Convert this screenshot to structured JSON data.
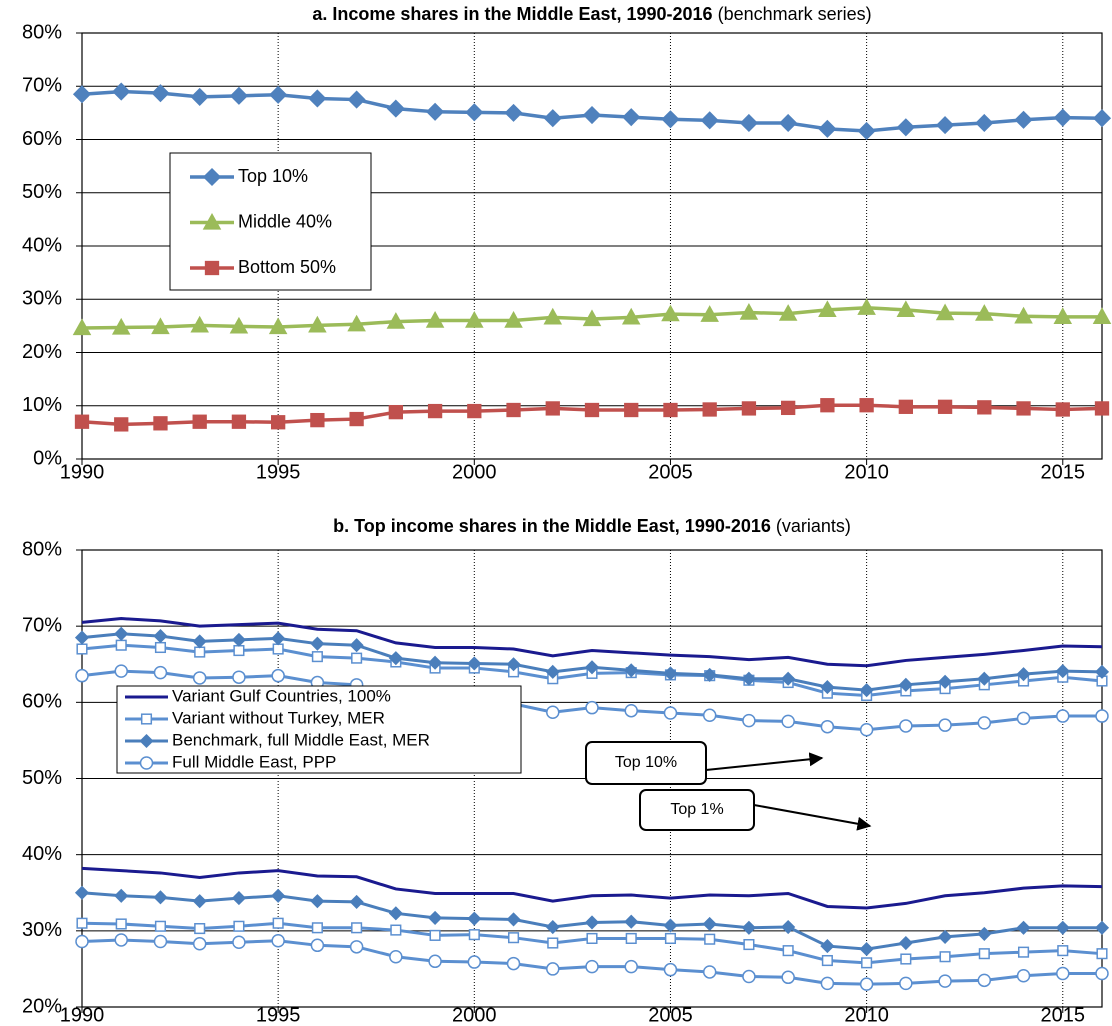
{
  "chart_data": [
    {
      "type": "line",
      "title": "a. Income shares in the Middle East, 1990-2016",
      "title_note": "(benchmark series)",
      "x": [
        1990,
        1991,
        1992,
        1993,
        1994,
        1995,
        1996,
        1997,
        1998,
        1999,
        2000,
        2001,
        2002,
        2003,
        2004,
        2005,
        2006,
        2007,
        2008,
        2009,
        2010,
        2011,
        2012,
        2013,
        2014,
        2015,
        2016
      ],
      "xlim": [
        1990,
        2016
      ],
      "xticks": [
        1990,
        1995,
        2000,
        2005,
        2010,
        2015
      ],
      "ylim": [
        0,
        80
      ],
      "yticks": [
        {
          "value": 0,
          "label": "0%"
        },
        {
          "value": 10,
          "label": "10%"
        },
        {
          "value": 20,
          "label": "20%"
        },
        {
          "value": 30,
          "label": "30%"
        },
        {
          "value": 40,
          "label": "40%"
        },
        {
          "value": 50,
          "label": "50%"
        },
        {
          "value": 60,
          "label": "60%"
        },
        {
          "value": 70,
          "label": "70%"
        },
        {
          "value": 80,
          "label": "80%"
        }
      ],
      "grid": true,
      "series": [
        {
          "name": "Top 10%",
          "color": "#4f81bd",
          "marker": "diamond",
          "values": [
            68.5,
            69,
            68.7,
            68,
            68.2,
            68.4,
            67.7,
            67.5,
            65.8,
            65.2,
            65.1,
            65,
            64,
            64.6,
            64.2,
            63.8,
            63.6,
            63.1,
            63.1,
            62,
            61.6,
            62.3,
            62.7,
            63.1,
            63.7,
            64.1,
            64
          ]
        },
        {
          "name": "Middle 40%",
          "color": "#9bbb59",
          "marker": "triangle",
          "values": [
            24.6,
            24.7,
            24.8,
            25.1,
            24.9,
            24.8,
            25.1,
            25.3,
            25.8,
            26,
            26,
            26,
            26.6,
            26.3,
            26.6,
            27.2,
            27.1,
            27.5,
            27.3,
            28,
            28.4,
            28,
            27.4,
            27.3,
            26.8,
            26.7,
            26.7
          ]
        },
        {
          "name": "Bottom 50%",
          "color": "#c0504d",
          "marker": "square",
          "values": [
            7,
            6.5,
            6.7,
            7,
            7,
            6.9,
            7.3,
            7.5,
            8.8,
            9,
            9,
            9.2,
            9.5,
            9.2,
            9.2,
            9.2,
            9.3,
            9.5,
            9.6,
            10.1,
            10.1,
            9.8,
            9.8,
            9.7,
            9.5,
            9.3,
            9.5
          ]
        }
      ]
    },
    {
      "type": "line",
      "title": "b. Top income shares in the Middle East, 1990-2016",
      "title_note": "(variants)",
      "x": [
        1990,
        1991,
        1992,
        1993,
        1994,
        1995,
        1996,
        1997,
        1998,
        1999,
        2000,
        2001,
        2002,
        2003,
        2004,
        2005,
        2006,
        2007,
        2008,
        2009,
        2010,
        2011,
        2012,
        2013,
        2014,
        2015,
        2016
      ],
      "xlim": [
        1990,
        2016
      ],
      "xticks": [
        1990,
        1995,
        2000,
        2005,
        2010,
        2015
      ],
      "ylim": [
        20,
        80
      ],
      "yticks": [
        {
          "value": 20,
          "label": "20%"
        },
        {
          "value": 30,
          "label": "30%"
        },
        {
          "value": 40,
          "label": "40%"
        },
        {
          "value": 50,
          "label": "50%"
        },
        {
          "value": 60,
          "label": "60%"
        },
        {
          "value": 70,
          "label": "70%"
        },
        {
          "value": 80,
          "label": "80%"
        }
      ],
      "grid": true,
      "annotations": [
        {
          "text": "Top 10%"
        },
        {
          "text": "Top 1%"
        }
      ],
      "series": [
        {
          "name": "Variant Gulf Countries, 100%",
          "color": "#1a1a8f",
          "values": [
            70.5,
            71,
            70.7,
            70,
            70.2,
            70.4,
            69.6,
            69.4,
            67.8,
            67.2,
            67.2,
            67,
            66.1,
            66.8,
            66.5,
            66.2,
            66,
            65.6,
            65.9,
            65,
            64.8,
            65.5,
            65.9,
            66.3,
            66.8,
            67.4,
            67.3
          ],
          "values_top1": [
            38.2,
            37.9,
            37.6,
            37,
            37.6,
            37.9,
            37.2,
            37.1,
            35.5,
            34.9,
            34.9,
            34.9,
            33.9,
            34.6,
            34.7,
            34.3,
            34.7,
            34.6,
            34.9,
            33.2,
            33,
            33.6,
            34.6,
            35,
            35.6,
            35.9,
            35.8
          ]
        },
        {
          "name": "Variant without Turkey, MER",
          "color": "#5b8fd0",
          "marker": "square",
          "marker_fill": "#ffffff",
          "values": [
            67,
            67.5,
            67.2,
            66.6,
            66.8,
            67,
            66,
            65.8,
            65.3,
            64.5,
            64.5,
            64,
            63.1,
            63.8,
            63.9,
            63.6,
            63.5,
            62.9,
            62.6,
            61.2,
            60.9,
            61.5,
            61.8,
            62.3,
            62.8,
            63.3,
            62.8
          ],
          "values_top1": [
            31,
            30.9,
            30.6,
            30.3,
            30.6,
            31,
            30.4,
            30.4,
            30.1,
            29.4,
            29.5,
            29.1,
            28.4,
            29,
            29,
            29,
            28.9,
            28.2,
            27.4,
            26.1,
            25.8,
            26.3,
            26.6,
            27,
            27.2,
            27.4,
            27
          ]
        },
        {
          "name": "Benchmark, full Middle East, MER",
          "color": "#4a7ebb",
          "marker": "diamond",
          "values": [
            68.5,
            69,
            68.7,
            68,
            68.2,
            68.4,
            67.7,
            67.5,
            65.8,
            65.2,
            65.1,
            65,
            64,
            64.6,
            64.2,
            63.8,
            63.6,
            63.1,
            63.1,
            62,
            61.6,
            62.3,
            62.7,
            63.1,
            63.7,
            64.1,
            64
          ],
          "values_top1": [
            35,
            34.6,
            34.4,
            33.9,
            34.3,
            34.6,
            33.9,
            33.8,
            32.3,
            31.7,
            31.6,
            31.5,
            30.5,
            31.1,
            31.2,
            30.7,
            30.9,
            30.4,
            30.5,
            28,
            27.6,
            28.4,
            29.2,
            29.6,
            30.4,
            30.4,
            30.4
          ]
        },
        {
          "name": "Full Middle East, PPP",
          "color": "#5b8fd0",
          "marker": "circle",
          "marker_fill": "#ffffff",
          "values": [
            63.5,
            64.1,
            63.9,
            63.2,
            63.3,
            63.5,
            62.6,
            62.3,
            60.6,
            60.1,
            59.9,
            59.8,
            58.7,
            59.3,
            58.9,
            58.6,
            58.3,
            57.6,
            57.5,
            56.8,
            56.4,
            56.9,
            57,
            57.3,
            57.9,
            58.2,
            58.2
          ],
          "values_top1": [
            28.6,
            28.8,
            28.6,
            28.3,
            28.5,
            28.7,
            28.1,
            27.9,
            26.6,
            26,
            25.9,
            25.7,
            25,
            25.3,
            25.3,
            24.9,
            24.6,
            24,
            23.9,
            23.1,
            23,
            23.1,
            23.4,
            23.5,
            24.1,
            24.4,
            24.4
          ]
        }
      ]
    }
  ]
}
